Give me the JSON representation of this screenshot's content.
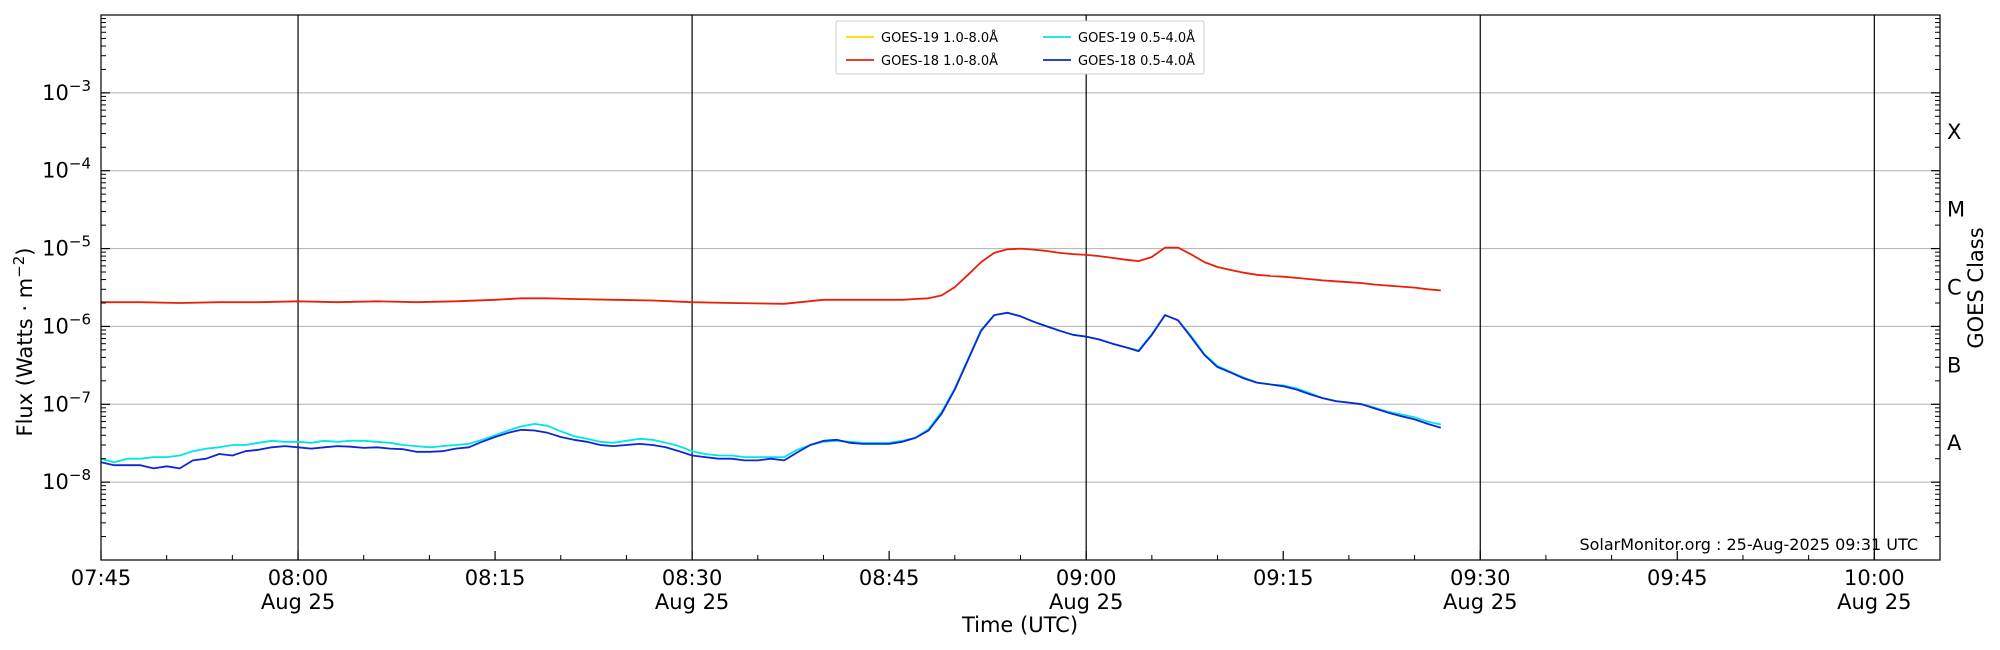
{
  "chart_data": {
    "type": "line",
    "xlabel": "Time (UTC)",
    "ylabel": "Flux (Watts · m⁻²)",
    "right_label": "GOES Class",
    "credit": "SolarMonitor.org : 25-Aug-2025 09:31 UTC",
    "x_range": [
      "07:45",
      "10:05"
    ],
    "ylim": [
      1e-09,
      0.01
    ],
    "y_scale": "log",
    "grid": "horizontal at each decade; vertical lines every 30 minutes",
    "legend_position": "top-center",
    "x_ticks": [
      {
        "time": "07:45",
        "label": "07:45",
        "date": ""
      },
      {
        "time": "08:00",
        "label": "08:00",
        "date": "Aug 25"
      },
      {
        "time": "08:15",
        "label": "08:15",
        "date": ""
      },
      {
        "time": "08:30",
        "label": "08:30",
        "date": "Aug 25"
      },
      {
        "time": "08:45",
        "label": "08:45",
        "date": ""
      },
      {
        "time": "09:00",
        "label": "09:00",
        "date": "Aug 25"
      },
      {
        "time": "09:15",
        "label": "09:15",
        "date": ""
      },
      {
        "time": "09:30",
        "label": "09:30",
        "date": "Aug 25"
      },
      {
        "time": "09:45",
        "label": "09:45",
        "date": ""
      },
      {
        "time": "10:00",
        "label": "10:00",
        "date": "Aug 25"
      }
    ],
    "vertical_lines": [
      "08:00",
      "08:30",
      "09:00",
      "09:30",
      "10:00"
    ],
    "y_ticks": [
      {
        "exp": -8,
        "label": "10",
        "sup": "−8"
      },
      {
        "exp": -7,
        "label": "10",
        "sup": "−7"
      },
      {
        "exp": -6,
        "label": "10",
        "sup": "−6"
      },
      {
        "exp": -5,
        "label": "10",
        "sup": "−5"
      },
      {
        "exp": -4,
        "label": "10",
        "sup": "−4"
      },
      {
        "exp": -3,
        "label": "10",
        "sup": "−3"
      }
    ],
    "goes_classes": [
      {
        "label": "A",
        "exp": -7.5
      },
      {
        "label": "B",
        "exp": -6.5
      },
      {
        "label": "C",
        "exp": -5.5
      },
      {
        "label": "M",
        "exp": -4.5
      },
      {
        "label": "X",
        "exp": -3.5
      }
    ],
    "series": [
      {
        "name": "GOES-19 1.0-8.0Å",
        "color": "#ffd700",
        "x": [],
        "y": []
      },
      {
        "name": "GOES-19 0.5-4.0Å",
        "color": "#00e5e5",
        "x": [
          "07:45",
          "07:46",
          "07:47",
          "07:48",
          "07:49",
          "07:50",
          "07:51",
          "07:52",
          "07:53",
          "07:54",
          "07:55",
          "07:56",
          "07:57",
          "07:58",
          "07:59",
          "08:00",
          "08:01",
          "08:02",
          "08:03",
          "08:04",
          "08:05",
          "08:06",
          "08:07",
          "08:08",
          "08:09",
          "08:10",
          "08:11",
          "08:12",
          "08:13",
          "08:14",
          "08:15",
          "08:16",
          "08:17",
          "08:18",
          "08:19",
          "08:20",
          "08:21",
          "08:22",
          "08:23",
          "08:24",
          "08:25",
          "08:26",
          "08:27",
          "08:28",
          "08:29",
          "08:30",
          "08:31",
          "08:32",
          "08:33",
          "08:34",
          "08:35",
          "08:36",
          "08:37",
          "08:38",
          "08:39",
          "08:40",
          "08:41",
          "08:42",
          "08:43",
          "08:44",
          "08:45",
          "08:46",
          "08:47",
          "08:48",
          "08:49",
          "08:50",
          "08:51",
          "08:52",
          "08:53",
          "08:54",
          "08:55",
          "08:56",
          "08:57",
          "08:58",
          "08:59",
          "09:00",
          "09:01",
          "09:02",
          "09:03",
          "09:04",
          "09:05",
          "09:06",
          "09:07",
          "09:08",
          "09:09",
          "09:10",
          "09:11",
          "09:12",
          "09:13",
          "09:14",
          "09:15",
          "09:16",
          "09:17",
          "09:18",
          "09:19",
          "09:20",
          "09:21",
          "09:22",
          "09:23",
          "09:24",
          "09:25",
          "09:26",
          "09:27"
        ],
        "y": [
          2e-08,
          1.8e-08,
          2e-08,
          2e-08,
          2.1e-08,
          2.1e-08,
          2.2e-08,
          2.5e-08,
          2.7e-08,
          2.8e-08,
          3e-08,
          3e-08,
          3.2e-08,
          3.4e-08,
          3.3e-08,
          3.3e-08,
          3.2e-08,
          3.4e-08,
          3.3e-08,
          3.4e-08,
          3.4e-08,
          3.3e-08,
          3.2e-08,
          3e-08,
          2.9e-08,
          2.8e-08,
          2.9e-08,
          3e-08,
          3.1e-08,
          3.5e-08,
          4e-08,
          4.6e-08,
          5.2e-08,
          5.6e-08,
          5.3e-08,
          4.5e-08,
          3.9e-08,
          3.6e-08,
          3.3e-08,
          3.2e-08,
          3.4e-08,
          3.6e-08,
          3.5e-08,
          3.2e-08,
          2.9e-08,
          2.5e-08,
          2.3e-08,
          2.2e-08,
          2.2e-08,
          2.1e-08,
          2.1e-08,
          2.1e-08,
          2.1e-08,
          2.6e-08,
          3e-08,
          3.3e-08,
          3.4e-08,
          3.3e-08,
          3.2e-08,
          3.2e-08,
          3.2e-08,
          3.4e-08,
          3.7e-08,
          4.8e-08,
          8e-08,
          1.6e-07,
          3.8e-07,
          9e-07,
          1.4e-06,
          1.5e-06,
          1.35e-06,
          1.15e-06,
          1e-06,
          8.8e-07,
          7.8e-07,
          7.4e-07,
          6.8e-07,
          6e-07,
          5.4e-07,
          4.9e-07,
          8e-07,
          1.4e-06,
          1.2e-06,
          7.5e-07,
          4.4e-07,
          3.1e-07,
          2.6e-07,
          2.2e-07,
          1.9e-07,
          1.8e-07,
          1.75e-07,
          1.6e-07,
          1.4e-07,
          1.2e-07,
          1.1e-07,
          1.05e-07,
          1e-07,
          9e-08,
          8e-08,
          7.4e-08,
          6.8e-08,
          6e-08,
          5.5e-08
        ]
      },
      {
        "name": "GOES-18 1.0-8.0Å",
        "color": "#e8200a",
        "x": [
          "07:45",
          "07:48",
          "07:51",
          "07:54",
          "07:57",
          "08:00",
          "08:03",
          "08:06",
          "08:09",
          "08:12",
          "08:15",
          "08:17",
          "08:19",
          "08:21",
          "08:24",
          "08:27",
          "08:30",
          "08:33",
          "08:37",
          "08:40",
          "08:43",
          "08:46",
          "08:47",
          "08:48",
          "08:49",
          "08:50",
          "08:51",
          "08:52",
          "08:53",
          "08:54",
          "08:55",
          "08:56",
          "08:57",
          "08:58",
          "08:59",
          "09:00",
          "09:01",
          "09:02",
          "09:03",
          "09:04",
          "09:05",
          "09:06",
          "09:07",
          "09:08",
          "09:09",
          "09:10",
          "09:11",
          "09:12",
          "09:13",
          "09:14",
          "09:15",
          "09:16",
          "09:17",
          "09:18",
          "09:19",
          "09:20",
          "09:21",
          "09:22",
          "09:23",
          "09:24",
          "09:25",
          "09:26",
          "09:27"
        ],
        "y": [
          2.05e-06,
          2.05e-06,
          2e-06,
          2.05e-06,
          2.05e-06,
          2.1e-06,
          2.05e-06,
          2.1e-06,
          2.05e-06,
          2.1e-06,
          2.2e-06,
          2.3e-06,
          2.3e-06,
          2.25e-06,
          2.2e-06,
          2.15e-06,
          2.05e-06,
          2e-06,
          1.95e-06,
          2.2e-06,
          2.2e-06,
          2.2e-06,
          2.25e-06,
          2.3e-06,
          2.5e-06,
          3.2e-06,
          4.6e-06,
          6.7e-06,
          8.8e-06,
          9.8e-06,
          1e-05,
          9.7e-06,
          9.3e-06,
          8.8e-06,
          8.5e-06,
          8.3e-06,
          8e-06,
          7.6e-06,
          7.2e-06,
          6.9e-06,
          7.8e-06,
          1.03e-05,
          1.03e-05,
          8.4e-06,
          6.7e-06,
          5.8e-06,
          5.3e-06,
          4.9e-06,
          4.6e-06,
          4.45e-06,
          4.35e-06,
          4.2e-06,
          4.05e-06,
          3.9e-06,
          3.8e-06,
          3.7e-06,
          3.6e-06,
          3.45e-06,
          3.35e-06,
          3.25e-06,
          3.15e-06,
          3e-06,
          2.9e-06
        ]
      },
      {
        "name": "GOES-18 0.5-4.0Å",
        "color": "#0b27d6",
        "x": [
          "07:45",
          "07:46",
          "07:47",
          "07:48",
          "07:49",
          "07:50",
          "07:51",
          "07:52",
          "07:53",
          "07:54",
          "07:55",
          "07:56",
          "07:57",
          "07:58",
          "07:59",
          "08:00",
          "08:01",
          "08:02",
          "08:03",
          "08:04",
          "08:05",
          "08:06",
          "08:07",
          "08:08",
          "08:09",
          "08:10",
          "08:11",
          "08:12",
          "08:13",
          "08:14",
          "08:15",
          "08:16",
          "08:17",
          "08:18",
          "08:19",
          "08:20",
          "08:21",
          "08:22",
          "08:23",
          "08:24",
          "08:25",
          "08:26",
          "08:27",
          "08:28",
          "08:29",
          "08:30",
          "08:31",
          "08:32",
          "08:33",
          "08:34",
          "08:35",
          "08:36",
          "08:37",
          "08:38",
          "08:39",
          "08:40",
          "08:41",
          "08:42",
          "08:43",
          "08:44",
          "08:45",
          "08:46",
          "08:47",
          "08:48",
          "08:49",
          "08:50",
          "08:51",
          "08:52",
          "08:53",
          "08:54",
          "08:55",
          "08:56",
          "08:57",
          "08:58",
          "08:59",
          "09:00",
          "09:01",
          "09:02",
          "09:03",
          "09:04",
          "09:05",
          "09:06",
          "09:07",
          "09:08",
          "09:09",
          "09:10",
          "09:11",
          "09:12",
          "09:13",
          "09:14",
          "09:15",
          "09:16",
          "09:17",
          "09:18",
          "09:19",
          "09:20",
          "09:21",
          "09:22",
          "09:23",
          "09:24",
          "09:25",
          "09:26",
          "09:27"
        ],
        "y": [
          1.8e-08,
          1.65e-08,
          1.65e-08,
          1.65e-08,
          1.5e-08,
          1.6e-08,
          1.5e-08,
          1.9e-08,
          2e-08,
          2.3e-08,
          2.2e-08,
          2.5e-08,
          2.6e-08,
          2.8e-08,
          2.9e-08,
          2.8e-08,
          2.7e-08,
          2.8e-08,
          2.9e-08,
          2.85e-08,
          2.75e-08,
          2.8e-08,
          2.7e-08,
          2.65e-08,
          2.45e-08,
          2.45e-08,
          2.5e-08,
          2.7e-08,
          2.8e-08,
          3.3e-08,
          3.8e-08,
          4.3e-08,
          4.7e-08,
          4.6e-08,
          4.3e-08,
          3.8e-08,
          3.5e-08,
          3.3e-08,
          3e-08,
          2.9e-08,
          3e-08,
          3.1e-08,
          3e-08,
          2.8e-08,
          2.5e-08,
          2.2e-08,
          2.1e-08,
          2e-08,
          2e-08,
          1.9e-08,
          1.9e-08,
          2e-08,
          1.9e-08,
          2.4e-08,
          3e-08,
          3.4e-08,
          3.5e-08,
          3.2e-08,
          3.1e-08,
          3.1e-08,
          3.1e-08,
          3.3e-08,
          3.7e-08,
          4.6e-08,
          7.6e-08,
          1.55e-07,
          3.7e-07,
          8.8e-07,
          1.4e-06,
          1.5e-06,
          1.35e-06,
          1.15e-06,
          1e-06,
          8.8e-07,
          7.8e-07,
          7.4e-07,
          6.8e-07,
          6e-07,
          5.4e-07,
          4.8e-07,
          7.8e-07,
          1.4e-06,
          1.2e-06,
          7.2e-07,
          4.3e-07,
          3e-07,
          2.55e-07,
          2.15e-07,
          1.9e-07,
          1.8e-07,
          1.7e-07,
          1.55e-07,
          1.35e-07,
          1.2e-07,
          1.1e-07,
          1.05e-07,
          1e-07,
          8.8e-08,
          7.8e-08,
          7e-08,
          6.4e-08,
          5.6e-08,
          5e-08
        ]
      }
    ]
  }
}
